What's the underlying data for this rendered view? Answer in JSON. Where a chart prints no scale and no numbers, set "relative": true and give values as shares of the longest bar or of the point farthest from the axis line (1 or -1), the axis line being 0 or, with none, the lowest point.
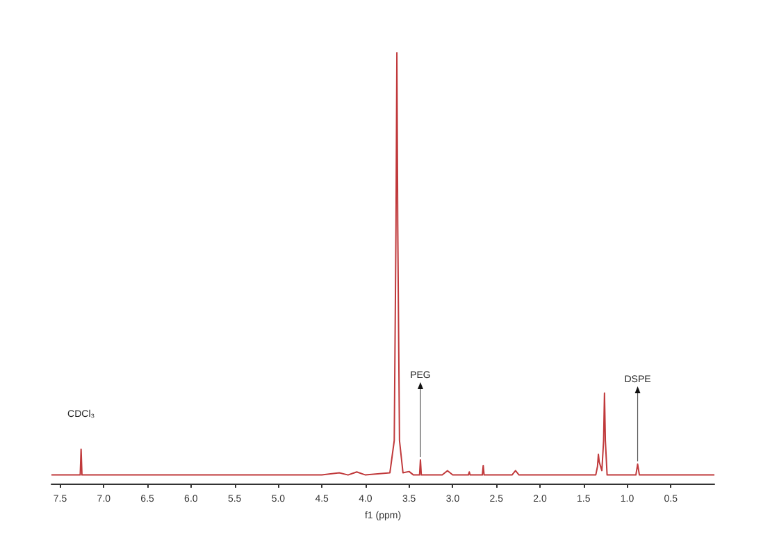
{
  "chart_data": {
    "type": "line",
    "xlabel": "f1 (ppm)",
    "relative": true,
    "color": "#c0393b",
    "marker": "none",
    "xlim": [
      7.6,
      0.0
    ],
    "xticks": [
      7.5,
      {
        "value": 7,
        "label": "7.0"
      },
      6.5,
      {
        "value": 6,
        "label": "6.0"
      },
      5.5,
      {
        "value": 5,
        "label": "5.0"
      },
      4.5,
      {
        "value": 4,
        "label": "4.0"
      },
      3.5,
      {
        "value": 3,
        "label": "3.0"
      },
      2.5,
      {
        "value": 2,
        "label": "2.0"
      },
      1.5,
      {
        "value": 1,
        "label": "1.0"
      },
      0.5
    ],
    "x": [
      7.6,
      7.3,
      7.27,
      7.26,
      7.25,
      4.5,
      4.3,
      4.2,
      4.1,
      4.0,
      3.72,
      3.67,
      3.65,
      3.64,
      3.63,
      3.61,
      3.57,
      3.5,
      3.45,
      3.38,
      3.37,
      3.36,
      3.12,
      3.06,
      3.0,
      2.82,
      2.81,
      2.8,
      2.66,
      2.65,
      2.64,
      2.32,
      2.28,
      2.24,
      1.36,
      1.34,
      1.33,
      1.32,
      1.29,
      1.27,
      1.26,
      1.25,
      1.23,
      0.9,
      0.88,
      0.86,
      0.0
    ],
    "values": [
      0.02,
      0.02,
      0.02,
      0.08,
      0.02,
      0.02,
      0.025,
      0.02,
      0.027,
      0.02,
      0.025,
      0.1,
      0.6,
      1.0,
      0.6,
      0.1,
      0.025,
      0.028,
      0.02,
      0.02,
      0.055,
      0.02,
      0.02,
      0.03,
      0.02,
      0.02,
      0.027,
      0.02,
      0.02,
      0.042,
      0.02,
      0.02,
      0.03,
      0.02,
      0.02,
      0.04,
      0.068,
      0.05,
      0.03,
      0.1,
      0.21,
      0.1,
      0.02,
      0.02,
      0.045,
      0.02,
      0.02
    ],
    "annotations": [
      {
        "text": "CDCl₃",
        "x": 7.26,
        "y": 0.08
      },
      {
        "text": "PEG",
        "x": 3.37,
        "y": 0.055
      },
      {
        "text": "DSPE",
        "x": 0.88,
        "y": 0.045
      }
    ]
  }
}
